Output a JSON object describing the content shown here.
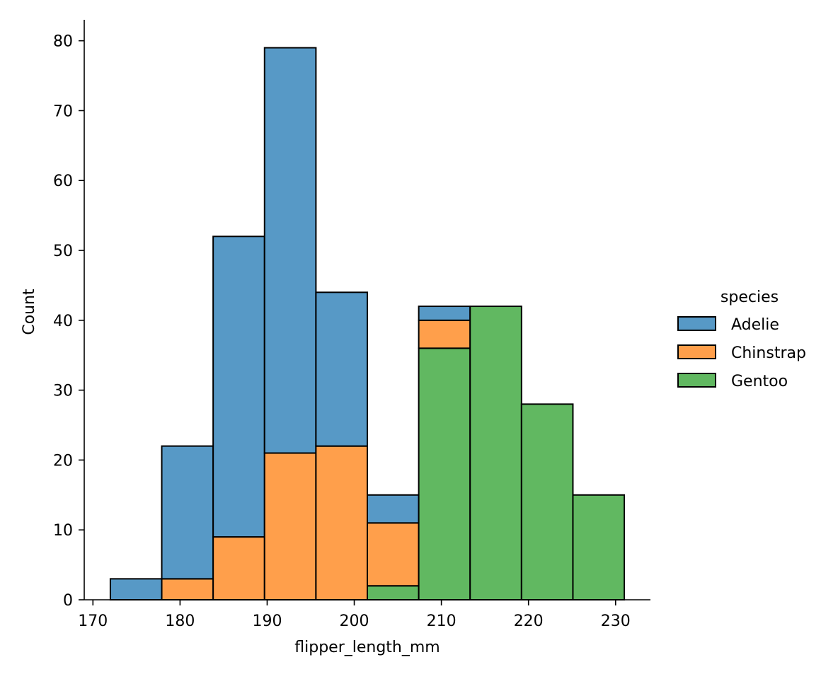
{
  "chart_data": {
    "type": "bar",
    "subtype": "stacked-histogram",
    "xlabel": "flipper_length_mm",
    "ylabel": "Count",
    "xlim": [
      169,
      234
    ],
    "ylim": [
      0,
      83
    ],
    "xticks": [
      170,
      180,
      190,
      200,
      210,
      220,
      230
    ],
    "yticks": [
      0,
      10,
      20,
      30,
      40,
      50,
      60,
      70,
      80
    ],
    "bin_edges": [
      172,
      177.9,
      183.8,
      189.7,
      195.6,
      201.5,
      207.4,
      213.3,
      219.2,
      225.1,
      231
    ],
    "stack_order": [
      "Gentoo",
      "Chinstrap",
      "Adelie"
    ],
    "series": [
      {
        "name": "Adelie",
        "color": "#5799c6",
        "values": [
          3,
          19,
          43,
          58,
          22,
          4,
          2,
          0,
          0,
          0
        ]
      },
      {
        "name": "Chinstrap",
        "color": "#ff9f4b",
        "values": [
          0,
          3,
          9,
          21,
          22,
          9,
          4,
          0,
          0,
          0
        ]
      },
      {
        "name": "Gentoo",
        "color": "#61b861",
        "values": [
          0,
          0,
          0,
          0,
          0,
          2,
          36,
          42,
          28,
          15
        ]
      }
    ],
    "legend": {
      "title": "species",
      "placement": "right"
    },
    "grid": false
  }
}
